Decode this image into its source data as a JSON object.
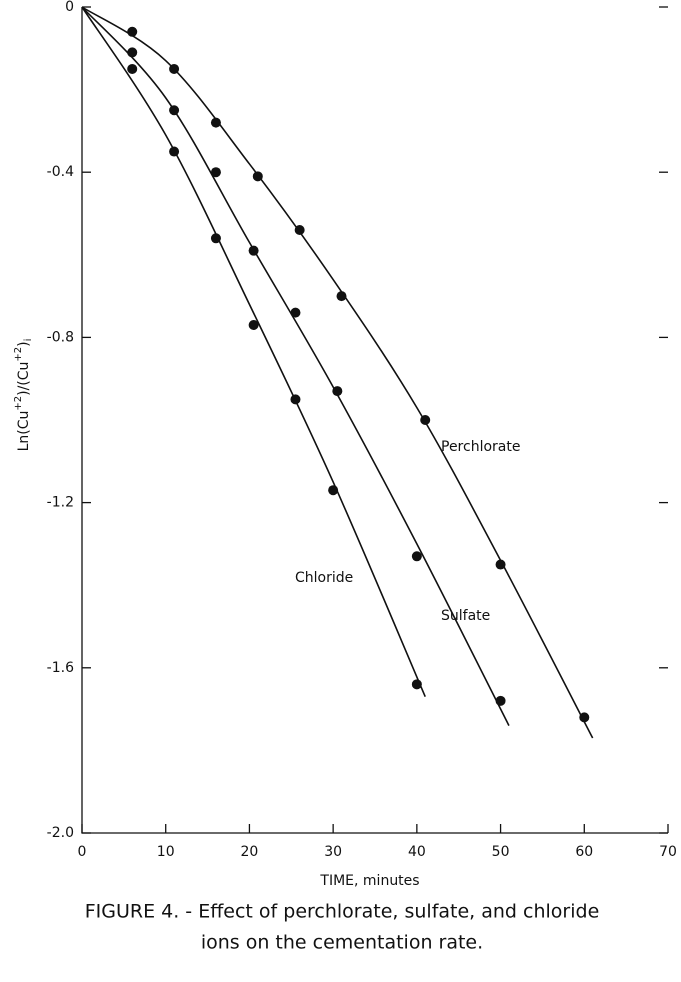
{
  "chart_data": {
    "type": "scatter",
    "x_label": "TIME, minutes",
    "y_label_parts": [
      "Ln(Cu",
      "+2",
      ")/(Cu",
      "+2",
      ")",
      "i"
    ],
    "caption": [
      "FIGURE 4. - Effect of perchlorate, sulfate, and chloride",
      "ions on the cementation rate."
    ],
    "xlim": [
      0,
      70
    ],
    "xticks": [
      0,
      10,
      20,
      30,
      40,
      50,
      60,
      70
    ],
    "ylim": [
      -2,
      0
    ],
    "yticks": [
      0,
      -0.4,
      -0.8,
      -1.2,
      -1.6,
      {
        "value": -2,
        "label": "-2.0"
      }
    ],
    "color": "#111111",
    "series": [
      {
        "name": "Perchlorate",
        "x": [
          6,
          11,
          16,
          21,
          26,
          31,
          41,
          50,
          60
        ],
        "values": [
          -0.06,
          -0.15,
          -0.28,
          -0.41,
          -0.54,
          -0.7,
          -1.0,
          -1.35,
          -1.72
        ],
        "curve": {
          "x": [
            0,
            10,
            20,
            30,
            40,
            50,
            61
          ],
          "values": [
            0,
            -0.13,
            -0.38,
            -0.66,
            -0.97,
            -1.34,
            -1.77
          ]
        }
      },
      {
        "name": "Sulfate",
        "x": [
          6,
          11,
          16,
          20.5,
          25.5,
          30.5,
          40,
          50
        ],
        "values": [
          -0.11,
          -0.25,
          -0.4,
          -0.59,
          -0.74,
          -0.93,
          -1.33,
          -1.68
        ],
        "curve": {
          "x": [
            0,
            10,
            20,
            30,
            40,
            51
          ],
          "values": [
            0,
            -0.22,
            -0.57,
            -0.92,
            -1.3,
            -1.74
          ]
        }
      },
      {
        "name": "Chloride",
        "x": [
          6,
          11,
          16,
          20.5,
          25.5,
          30,
          40
        ],
        "values": [
          -0.15,
          -0.35,
          -0.56,
          -0.77,
          -0.95,
          -1.17,
          -1.64
        ],
        "curve": {
          "x": [
            0,
            10,
            20,
            30,
            41
          ],
          "values": [
            0,
            -0.31,
            -0.72,
            -1.15,
            -1.67
          ]
        }
      }
    ]
  }
}
